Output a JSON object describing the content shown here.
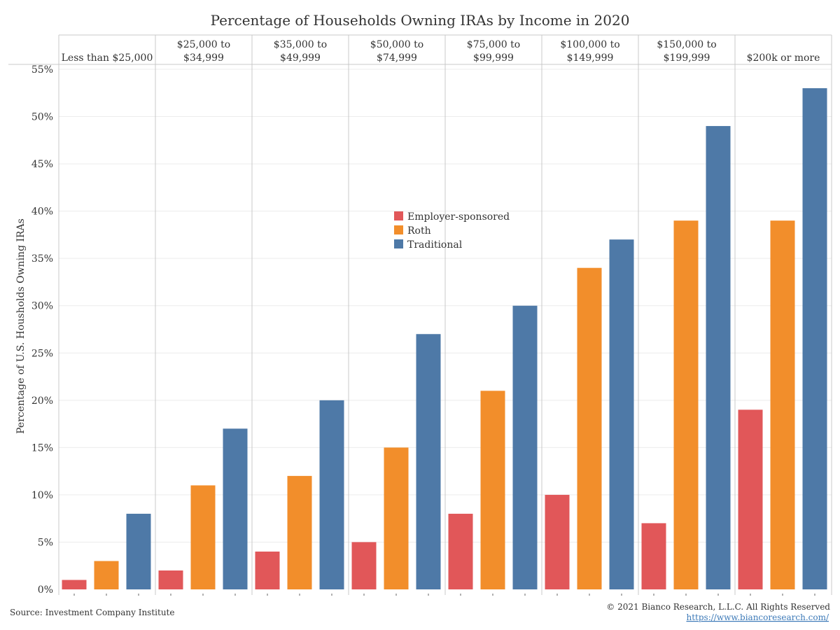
{
  "footer": {
    "source": "Source: Investment Company Institute",
    "copyright": "© 2021 Bianco Research, L.L.C. All Rights Reserved",
    "url": "https://www.biancoresearch.com/"
  },
  "colors": {
    "employer": "#e15759",
    "roth": "#f28e2b",
    "traditional": "#4e79a7",
    "grid": "#ececec",
    "divider": "#c8c8c8"
  },
  "chart_data": {
    "type": "bar",
    "title": "Percentage of Households Owning IRAs by Income in 2020",
    "ylabel": "Percentage of U.S. Housholds Owning IRAs",
    "xlabel": "",
    "ylim": [
      0,
      55
    ],
    "yticks": [
      "0%",
      "5%",
      "10%",
      "15%",
      "20%",
      "25%",
      "30%",
      "35%",
      "40%",
      "45%",
      "50%",
      "55%"
    ],
    "grid": true,
    "legend_position": "center",
    "categories": [
      [
        "Less than $25,000"
      ],
      [
        "$25,000 to",
        "$34,999"
      ],
      [
        "$35,000 to",
        "$49,999"
      ],
      [
        "$50,000 to",
        "$74,999"
      ],
      [
        "$75,000 to",
        "$99,999"
      ],
      [
        "$100,000 to",
        "$149,999"
      ],
      [
        "$150,000 to",
        "$199,999"
      ],
      [
        "$200k or more"
      ]
    ],
    "series": [
      {
        "name": "Employer-sponsored",
        "color": "#e15759",
        "values": [
          1,
          2,
          4,
          5,
          8,
          10,
          7,
          19
        ]
      },
      {
        "name": "Roth",
        "color": "#f28e2b",
        "values": [
          3,
          11,
          12,
          15,
          21,
          34,
          39,
          39
        ]
      },
      {
        "name": "Traditional",
        "color": "#4e79a7",
        "values": [
          8,
          17,
          20,
          27,
          30,
          37,
          49,
          53
        ]
      }
    ]
  }
}
